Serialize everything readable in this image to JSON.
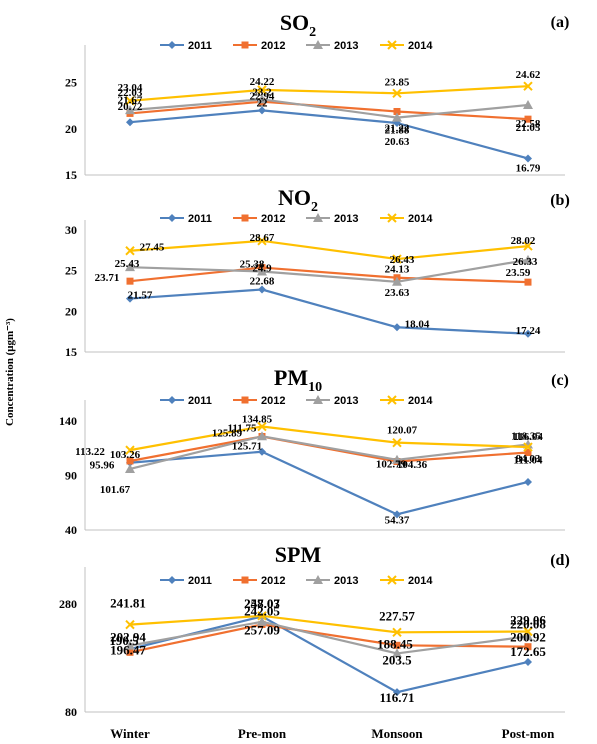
{
  "chart_data": {
    "type": "line",
    "categories": [
      "Winter",
      "Pre-mon",
      "Monsoon",
      "Post-mon"
    ],
    "ylabel": "Concentration (μgm⁻³)",
    "colors": {
      "2011": "#4f81bd",
      "2012": "#f07030",
      "2013": "#a0a0a0",
      "2014": "#ffc000"
    },
    "markers": {
      "2011": "diamond",
      "2012": "square",
      "2013": "triangle",
      "2014": "x"
    },
    "panels": [
      {
        "title_main": "SO",
        "title_sub": "2",
        "panel_label": "(a)",
        "ylim": [
          15,
          28
        ],
        "yticks": [
          "15",
          "20",
          "25"
        ],
        "ytick_values": [
          15,
          20,
          25
        ],
        "series": [
          {
            "name": "2011",
            "values": [
              20.72,
              22,
              20.63,
              16.79
            ]
          },
          {
            "name": "2012",
            "values": [
              21.67,
              22.94,
              21.88,
              21.05
            ]
          },
          {
            "name": "2013",
            "values": [
              22.03,
              23.2,
              21.22,
              22.58
            ]
          },
          {
            "name": "2014",
            "values": [
              23.04,
              24.22,
              23.85,
              24.62
            ]
          }
        ],
        "labels": [
          "23.04",
          "22.03",
          "21.67",
          "20.72",
          "24.22",
          "23.2",
          "22.94",
          "22",
          "23.85",
          "21.22",
          "21.88",
          "20.63",
          "24.62",
          "22.58",
          "21.05",
          "16.79"
        ]
      },
      {
        "title_main": "NO",
        "title_sub": "2",
        "panel_label": "(b)",
        "ylim": [
          15,
          30
        ],
        "yticks": [
          "15",
          "20",
          "25",
          "30"
        ],
        "ytick_values": [
          15,
          20,
          25,
          30
        ],
        "series": [
          {
            "name": "2011",
            "values": [
              21.57,
              22.68,
              18.04,
              17.24
            ]
          },
          {
            "name": "2012",
            "values": [
              23.71,
              25.38,
              24.13,
              23.59
            ]
          },
          {
            "name": "2013",
            "values": [
              25.43,
              24.9,
              23.63,
              26.33
            ]
          },
          {
            "name": "2014",
            "values": [
              27.45,
              28.67,
              26.43,
              28.02
            ]
          }
        ],
        "labels": [
          "27.45",
          "25.43",
          "23.71",
          "21.57",
          "28.67",
          "24.9",
          "25.38",
          "22.68",
          "26.43",
          "23.63",
          "24.13",
          "18.04",
          "28.02",
          "26.33",
          "23.59",
          "17.24"
        ]
      },
      {
        "title_main": "PM",
        "title_sub": "10",
        "panel_label": "(c)",
        "ylim": [
          40,
          150
        ],
        "yticks": [
          "40",
          "90",
          "140"
        ],
        "ytick_values": [
          40,
          90,
          140
        ],
        "series": [
          {
            "name": "2011",
            "values": [
              101.67,
              111.75,
              54.37,
              84.03
            ]
          },
          {
            "name": "2012",
            "values": [
              103.26,
              125.71,
              102.79,
              111.04
            ]
          },
          {
            "name": "2013",
            "values": [
              95.96,
              125.89,
              104.36,
              118.35
            ]
          },
          {
            "name": "2014",
            "values": [
              113.22,
              134.85,
              120.07,
              116.04
            ]
          }
        ],
        "labels": [
          "113.22",
          "101.67",
          "103.26",
          "95.96",
          "134.85",
          "111.75",
          "125.89",
          "125.71",
          "120.07",
          "104.36",
          "102.79",
          "54.37",
          "116.04",
          "118.35",
          "111.04",
          "84.03"
        ]
      },
      {
        "title_main": "SPM",
        "title_sub": "",
        "panel_label": "(d)",
        "ylim": [
          80,
          330
        ],
        "yticks": [
          "80",
          "280"
        ],
        "ytick_values": [
          80,
          280
        ],
        "series": [
          {
            "name": "2011",
            "values": [
              196.47,
              257.09,
              116.71,
              172.65
            ]
          },
          {
            "name": "2012",
            "values": [
              190.5,
              242.05,
              203.5,
              200.92
            ]
          },
          {
            "name": "2013",
            "values": [
              202.94,
              247.03,
              188.45,
              220.08
            ]
          },
          {
            "name": "2014",
            "values": [
              241.81,
              258.07,
              227.57,
              229.06
            ]
          }
        ],
        "labels": [
          "241.81",
          "202.94",
          "196.47",
          "190.5",
          "258.07",
          "247.03",
          "257.09",
          "242.05",
          "227.57",
          "188.45",
          "203.5",
          "116.71",
          "229.06",
          "220.08",
          "200.92",
          "172.65"
        ]
      }
    ]
  }
}
